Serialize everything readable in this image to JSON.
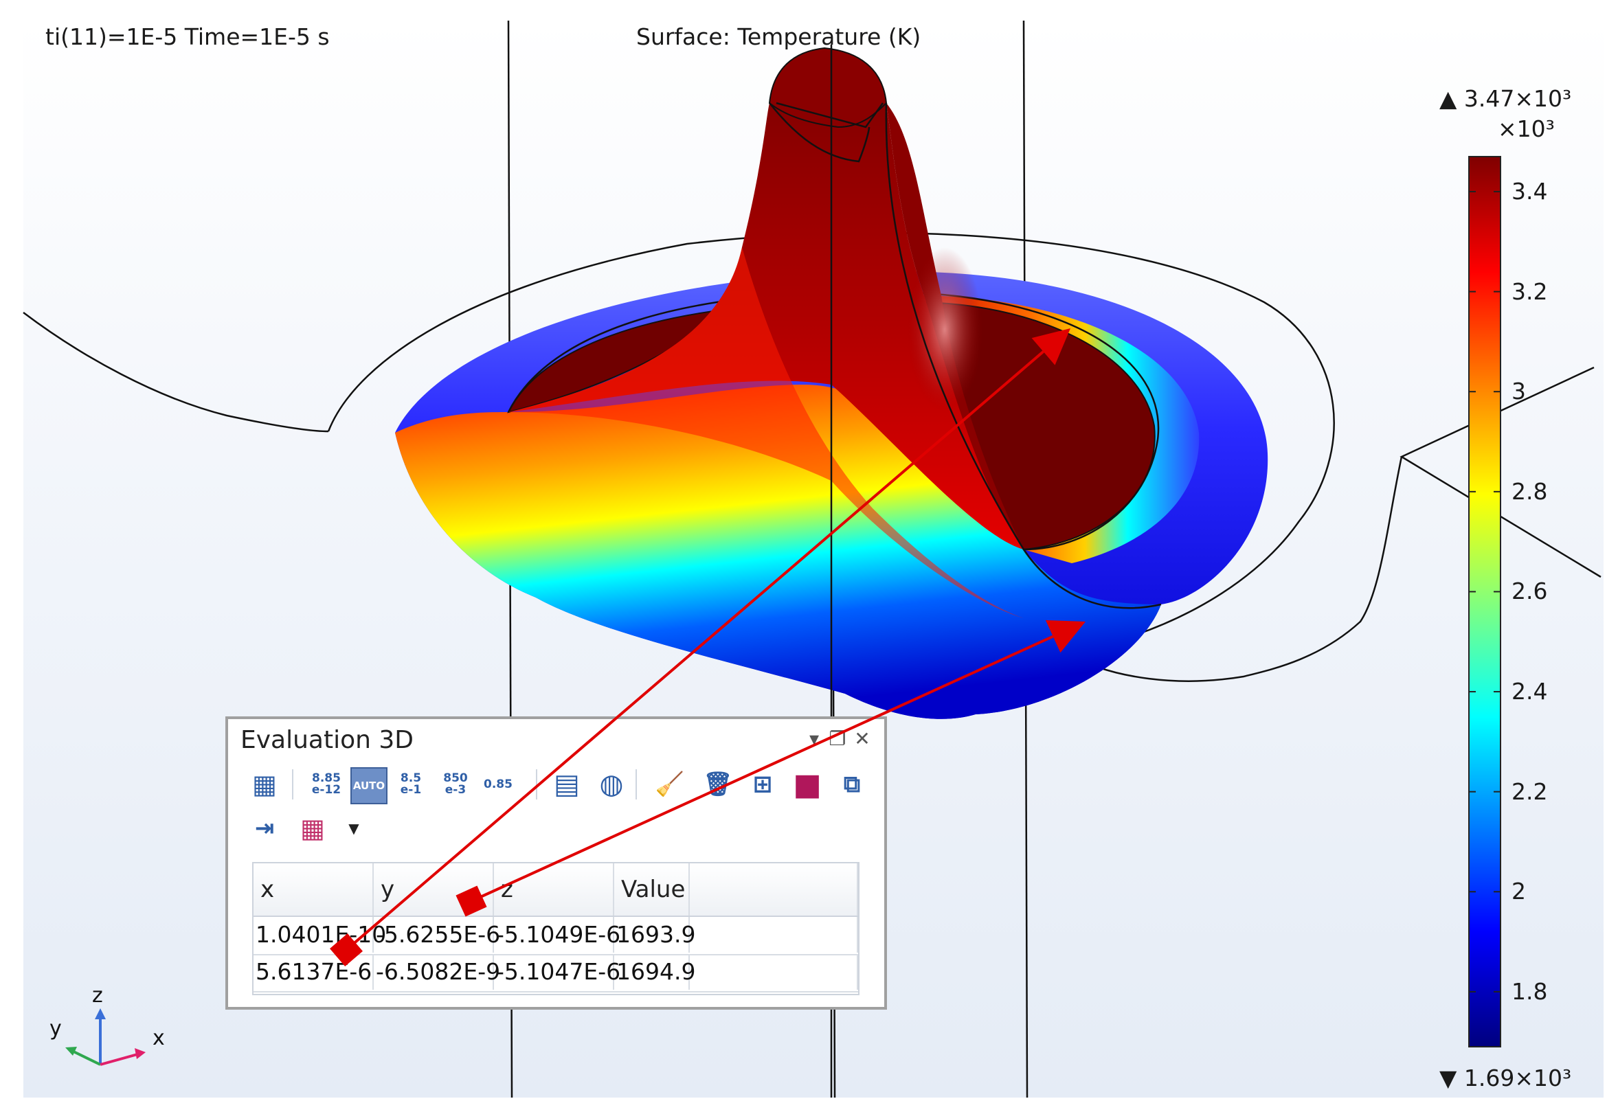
{
  "plot": {
    "time_label": "ti(11)=1E-5 Time=1E-5 s",
    "title": "Surface: Temperature (K)"
  },
  "colorbar": {
    "max_label": "▲ 3.47×10³",
    "multiplier": "×10³",
    "min_label": "▼ 1.69×10³",
    "min": 1.69,
    "max": 3.47,
    "ticks": [
      "3.4",
      "3.2",
      "3",
      "2.8",
      "2.6",
      "2.4",
      "2.2",
      "2",
      "1.8"
    ],
    "colors": [
      "#00007f",
      "#0000ff",
      "#00ffff",
      "#ffff00",
      "#ff0000",
      "#7f0000"
    ]
  },
  "panel": {
    "title": "Evaluation 3D",
    "buttons": {
      "menu": "▾",
      "restore": "❐",
      "close": "✕"
    },
    "toolbar": [
      {
        "name": "evaluate-icon",
        "label": "▦"
      },
      {
        "name": "format-scientific-icon",
        "label": "8.85\ne-12"
      },
      {
        "name": "format-auto-icon",
        "label": "AUTO"
      },
      {
        "name": "format-engineering-icon",
        "label": "8.5\ne-1"
      },
      {
        "name": "format-engineering-alt-icon",
        "label": "850\ne-3"
      },
      {
        "name": "format-decimal-icon",
        "label": "0.85"
      },
      {
        "name": "table-icon",
        "label": "▤"
      },
      {
        "name": "grid-icon",
        "label": "◍"
      },
      {
        "name": "clear-broom-icon",
        "label": "🧹"
      },
      {
        "name": "delete-icon",
        "label": "🗑"
      },
      {
        "name": "export-table-icon",
        "label": "⊞"
      },
      {
        "name": "color-icon",
        "label": "■"
      },
      {
        "name": "copy-table-icon",
        "label": "⧉"
      },
      {
        "name": "full-precision-icon",
        "label": "⇥"
      },
      {
        "name": "table-layout-icon",
        "label": "▦"
      },
      {
        "name": "more-dropdown-icon",
        "label": "▼"
      }
    ],
    "table": {
      "columns": [
        "x",
        "y",
        "z",
        "Value",
        ""
      ],
      "rows": [
        [
          "1.0401E-10",
          "-5.6255E-6",
          "-5.1049E-6",
          "1693.9",
          ""
        ],
        [
          "5.6137E-6",
          "-6.5082E-9",
          "-5.1047E-6",
          "1694.9",
          ""
        ]
      ]
    }
  },
  "axes_triad": {
    "z": "z",
    "y": "y",
    "x": "x",
    "colors": {
      "z": "#3a6fd8",
      "y": "#2fa84f",
      "x": "#e0206a"
    }
  },
  "annotation_color": "#e00000"
}
